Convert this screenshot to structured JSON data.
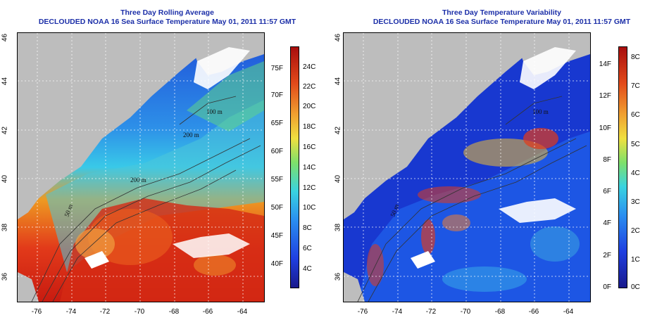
{
  "left_panel": {
    "title": "Three Day Rolling Average",
    "subtitle": "DECLOUDED NOAA 16 Sea Surface Temperature May 01, 2011 11:57 GMT",
    "colorbar_f": [
      "75F",
      "70F",
      "65F",
      "60F",
      "55F",
      "50F",
      "45F",
      "40F"
    ],
    "colorbar_c": [
      "24C",
      "22C",
      "20C",
      "18C",
      "16C",
      "14C",
      "12C",
      "10C",
      "8C",
      "6C",
      "4C"
    ],
    "contour_labels": [
      "100 m",
      "200 m",
      "200 m",
      "50 m"
    ]
  },
  "right_panel": {
    "title": "Three Day Temperature Variability",
    "subtitle": "DECLOUDED NOAA 16 Sea Surface Temperature May 01, 2011 11:57 GMT",
    "colorbar_f": [
      "14F",
      "12F",
      "10F",
      "8F",
      "6F",
      "4F",
      "2F",
      "0F"
    ],
    "colorbar_c": [
      "8C",
      "7C",
      "6C",
      "5C",
      "4C",
      "3C",
      "2C",
      "1C",
      "0C"
    ],
    "contour_labels": [
      "100 m",
      "50 m"
    ]
  },
  "axes": {
    "lat_ticks": [
      "46",
      "44",
      "42",
      "40",
      "38",
      "36"
    ],
    "lon_ticks": [
      "-76",
      "-74",
      "-72",
      "-70",
      "-68",
      "-66",
      "-64"
    ]
  },
  "colors": {
    "land": "#bdbdbd",
    "title": "#1c2fa8"
  }
}
